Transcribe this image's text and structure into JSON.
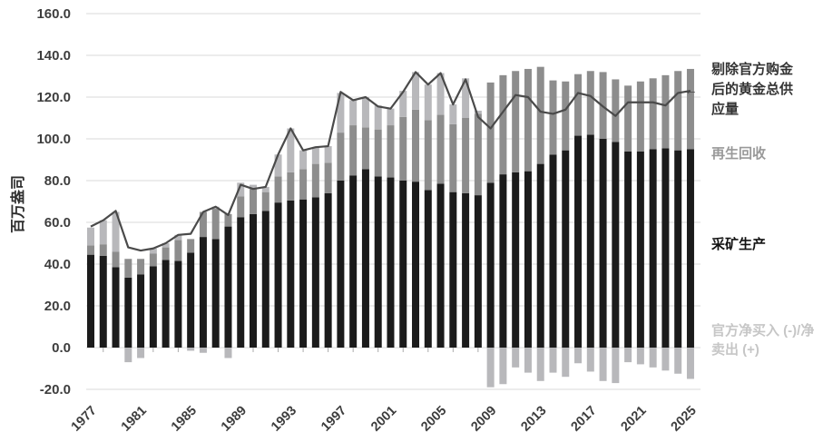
{
  "chart_data": {
    "type": "bar",
    "subtype": "stacked-bar-with-line",
    "title": "",
    "xlabel": "",
    "ylabel": "百万盎司",
    "ylim": [
      -20,
      160
    ],
    "y_ticks": [
      160,
      140,
      120,
      100,
      80,
      60,
      40,
      20,
      0,
      -20
    ],
    "x_tick_years": [
      1977,
      1981,
      1985,
      1989,
      1993,
      1997,
      2001,
      2005,
      2009,
      2013,
      2017,
      2021,
      2025
    ],
    "grid": true,
    "legend_position": "right",
    "years": [
      1977,
      1978,
      1979,
      1980,
      1981,
      1982,
      1983,
      1984,
      1985,
      1986,
      1987,
      1988,
      1989,
      1990,
      1991,
      1992,
      1993,
      1994,
      1995,
      1996,
      1997,
      1998,
      1999,
      2000,
      2001,
      2002,
      2003,
      2004,
      2005,
      2006,
      2007,
      2008,
      2009,
      2010,
      2011,
      2012,
      2013,
      2014,
      2015,
      2016,
      2017,
      2018,
      2019,
      2020,
      2021,
      2022,
      2023,
      2024,
      2025
    ],
    "series": [
      {
        "name": "采矿生产",
        "type": "bar",
        "color": "#1b1b1b",
        "values": [
          44.5,
          44,
          38.5,
          33.5,
          35,
          39,
          42,
          41.5,
          45.5,
          53,
          52,
          58,
          62.5,
          64,
          65.5,
          69.5,
          70.5,
          71,
          72,
          74,
          80,
          82.5,
          85.5,
          82,
          81.5,
          80,
          79.5,
          75.5,
          78.5,
          74.5,
          74,
          73,
          79,
          83,
          84,
          84.5,
          88,
          92.5,
          94.5,
          101.5,
          102,
          100,
          98.5,
          94,
          94,
          95,
          95.5,
          94.5,
          95
        ]
      },
      {
        "name": "再生回收",
        "type": "bar",
        "color": "#8d8d8d",
        "values": [
          4.5,
          5.5,
          7.5,
          9,
          7.5,
          6,
          6,
          10,
          6.5,
          12,
          14.5,
          6,
          10,
          12,
          9,
          12.5,
          13.5,
          14.5,
          16,
          14.5,
          23,
          24,
          20,
          22.5,
          25,
          30.5,
          34.5,
          33.5,
          33,
          32.5,
          36,
          39,
          48,
          47.5,
          48.5,
          49,
          46.5,
          35.5,
          33,
          29.5,
          30.5,
          32,
          30,
          31.5,
          33.5,
          34,
          35,
          38,
          38.5
        ]
      },
      {
        "name": "官方净买入 (-)/净卖出 (+)",
        "type": "bar",
        "color": "#b8b8bb",
        "values": [
          8.5,
          11.5,
          19,
          -7,
          -5,
          2.5,
          2,
          2.5,
          -1.5,
          -2.5,
          1,
          -5,
          6.5,
          2,
          2.5,
          10.5,
          21,
          9,
          8,
          8,
          19,
          12,
          14.5,
          11.5,
          8,
          12.5,
          18,
          17,
          20,
          9.5,
          19,
          1.5,
          -19,
          -17.5,
          -9.5,
          -12,
          -16,
          -12,
          -14,
          -7.5,
          -11.5,
          -16,
          -17,
          -7,
          -8,
          -9.5,
          -11,
          -12.5,
          -15
        ]
      },
      {
        "name": "剔除官方购金后的黄金总供应量",
        "type": "line",
        "color": "#4a4a4a",
        "values": [
          58,
          61,
          65.5,
          48,
          46.5,
          47.5,
          50,
          54,
          54.5,
          65,
          67.5,
          63.5,
          78,
          76,
          77,
          92.5,
          105,
          94.5,
          96,
          96.5,
          122.5,
          118.5,
          120,
          115.5,
          114.5,
          122.5,
          132,
          126,
          131.5,
          116.5,
          128.5,
          110.5,
          105,
          113,
          121,
          120,
          113,
          112,
          114,
          122,
          120.5,
          115.5,
          111,
          117.5,
          117.5,
          117.5,
          116,
          122,
          123
        ]
      }
    ]
  },
  "icons": {
    "left_arrow": "←"
  },
  "style_colors": {
    "grid": "#d9d9d9",
    "axis_text": "#3d3d3d",
    "zero_tick": "#ababab",
    "label_total": "#343434",
    "label_recycled": "#999999",
    "label_mine": "#121212",
    "label_official": "#c6c6c6"
  }
}
